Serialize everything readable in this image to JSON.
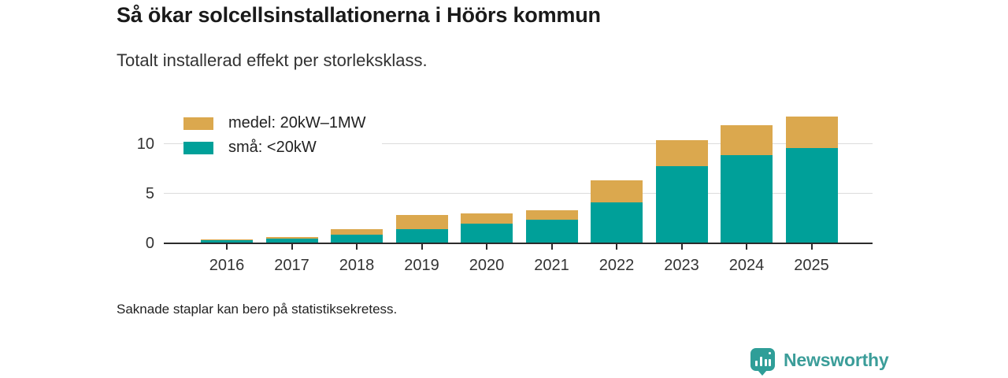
{
  "header": {
    "title": "Så ökar solcellsinstallationerna i Höörs kommun",
    "subtitle": "Totalt installerad effekt per storleksklass."
  },
  "legend": {
    "entries": [
      {
        "label": "medel: 20kW–1MW",
        "color": "#dba84e"
      },
      {
        "label": "små: <20kW",
        "color": "#00a099"
      }
    ]
  },
  "chart_data": {
    "type": "bar",
    "stacked": true,
    "title": "Så ökar solcellsinstallationerna i Höörs kommun",
    "subtitle": "Totalt installerad effekt per storleksklass.",
    "categories": [
      "2016",
      "2017",
      "2018",
      "2019",
      "2020",
      "2021",
      "2022",
      "2023",
      "2024",
      "2025"
    ],
    "series": [
      {
        "name": "små: <20kW",
        "color": "#00a099",
        "values": [
          0.3,
          0.45,
          0.85,
          1.45,
          2.0,
          2.35,
          4.15,
          7.8,
          8.9,
          9.6
        ]
      },
      {
        "name": "medel: 20kW–1MW",
        "color": "#dba84e",
        "values": [
          0.1,
          0.15,
          0.55,
          1.45,
          1.0,
          1.0,
          2.2,
          2.65,
          3.0,
          3.2
        ]
      }
    ],
    "xlabel": "",
    "ylabel": "",
    "yticks": [
      0,
      5,
      10
    ],
    "ylim": [
      0,
      15
    ],
    "grid": true,
    "legend_position": "top-left",
    "note": "Saknade staplar kan bero på statistiksekretess."
  },
  "footer": {
    "note": "Saknade staplar kan bero på statistiksekretess.",
    "brand": "Newsworthy"
  },
  "colors": {
    "small_series": "#00a099",
    "medium_series": "#dba84e",
    "axis": "#2b2b2b",
    "gridline": "#dcdcdc",
    "brand_teal": "#3b9d99"
  }
}
